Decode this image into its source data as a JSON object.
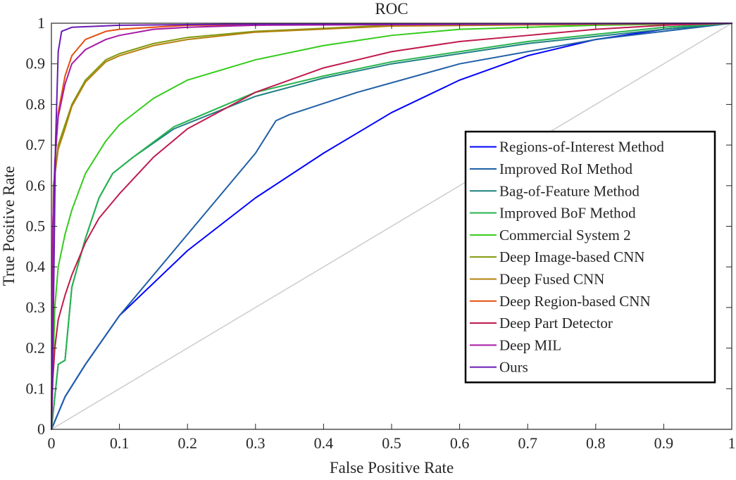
{
  "chart_data": {
    "type": "line",
    "title": "ROC",
    "xlabel": "False Positive Rate",
    "ylabel": "True Positive Rate",
    "xlim": [
      0,
      1
    ],
    "ylim": [
      0,
      1
    ],
    "xticks": [
      "0",
      "0.1",
      "0.2",
      "0.3",
      "0.4",
      "0.5",
      "0.6",
      "0.7",
      "0.8",
      "0.9",
      "1"
    ],
    "yticks": [
      "0",
      "0.1",
      "0.2",
      "0.3",
      "0.4",
      "0.5",
      "0.6",
      "0.7",
      "0.8",
      "0.9",
      "1"
    ],
    "grid": false,
    "legend_position": "right",
    "diagonal_color": "#cccccc",
    "series": [
      {
        "name": "Regions-of-Interest Method",
        "color": "#0000ff",
        "points": [
          [
            0,
            0
          ],
          [
            0.02,
            0.08
          ],
          [
            0.05,
            0.16
          ],
          [
            0.1,
            0.28
          ],
          [
            0.2,
            0.44
          ],
          [
            0.3,
            0.57
          ],
          [
            0.4,
            0.68
          ],
          [
            0.5,
            0.78
          ],
          [
            0.6,
            0.86
          ],
          [
            0.7,
            0.92
          ],
          [
            0.8,
            0.96
          ],
          [
            0.9,
            0.985
          ],
          [
            1,
            1
          ]
        ]
      },
      {
        "name": "Improved RoI Method",
        "color": "#1f5fa6",
        "points": [
          [
            0,
            0
          ],
          [
            0.02,
            0.08
          ],
          [
            0.05,
            0.16
          ],
          [
            0.1,
            0.28
          ],
          [
            0.2,
            0.48
          ],
          [
            0.3,
            0.68
          ],
          [
            0.33,
            0.76
          ],
          [
            0.35,
            0.775
          ],
          [
            0.45,
            0.83
          ],
          [
            0.6,
            0.9
          ],
          [
            0.8,
            0.96
          ],
          [
            1,
            1
          ]
        ]
      },
      {
        "name": "Bag-of-Feature Method",
        "color": "#1e8080",
        "points": [
          [
            0,
            0
          ],
          [
            0.01,
            0.16
          ],
          [
            0.02,
            0.17
          ],
          [
            0.03,
            0.35
          ],
          [
            0.05,
            0.47
          ],
          [
            0.07,
            0.57
          ],
          [
            0.09,
            0.63
          ],
          [
            0.12,
            0.67
          ],
          [
            0.18,
            0.74
          ],
          [
            0.3,
            0.82
          ],
          [
            0.4,
            0.865
          ],
          [
            0.5,
            0.9
          ],
          [
            0.7,
            0.95
          ],
          [
            0.9,
            0.985
          ],
          [
            1,
            1
          ]
        ]
      },
      {
        "name": "Improved BoF Method",
        "color": "#26b34d",
        "points": [
          [
            0,
            0
          ],
          [
            0.01,
            0.16
          ],
          [
            0.02,
            0.17
          ],
          [
            0.03,
            0.35
          ],
          [
            0.05,
            0.47
          ],
          [
            0.07,
            0.57
          ],
          [
            0.09,
            0.63
          ],
          [
            0.12,
            0.67
          ],
          [
            0.18,
            0.745
          ],
          [
            0.3,
            0.83
          ],
          [
            0.4,
            0.87
          ],
          [
            0.5,
            0.905
          ],
          [
            0.7,
            0.955
          ],
          [
            0.9,
            0.99
          ],
          [
            1,
            1
          ]
        ]
      },
      {
        "name": "Commercial System 2",
        "color": "#33cc1a",
        "points": [
          [
            0,
            0
          ],
          [
            0.005,
            0.3
          ],
          [
            0.01,
            0.4
          ],
          [
            0.02,
            0.48
          ],
          [
            0.03,
            0.54
          ],
          [
            0.05,
            0.63
          ],
          [
            0.08,
            0.71
          ],
          [
            0.1,
            0.75
          ],
          [
            0.15,
            0.815
          ],
          [
            0.2,
            0.86
          ],
          [
            0.3,
            0.91
          ],
          [
            0.4,
            0.945
          ],
          [
            0.5,
            0.97
          ],
          [
            0.6,
            0.985
          ],
          [
            0.8,
            0.995
          ],
          [
            1,
            1
          ]
        ]
      },
      {
        "name": "Deep Image-based CNN",
        "color": "#80990d",
        "points": [
          [
            0,
            0
          ],
          [
            0.003,
            0.6
          ],
          [
            0.01,
            0.7
          ],
          [
            0.02,
            0.75
          ],
          [
            0.03,
            0.8
          ],
          [
            0.05,
            0.86
          ],
          [
            0.08,
            0.91
          ],
          [
            0.1,
            0.925
          ],
          [
            0.15,
            0.95
          ],
          [
            0.2,
            0.965
          ],
          [
            0.3,
            0.98
          ],
          [
            0.5,
            0.995
          ],
          [
            1,
            1
          ]
        ]
      },
      {
        "name": "Deep Fused CNN",
        "color": "#b37f0d",
        "points": [
          [
            0,
            0
          ],
          [
            0.003,
            0.6
          ],
          [
            0.01,
            0.69
          ],
          [
            0.02,
            0.74
          ],
          [
            0.03,
            0.795
          ],
          [
            0.05,
            0.855
          ],
          [
            0.08,
            0.905
          ],
          [
            0.1,
            0.92
          ],
          [
            0.15,
            0.945
          ],
          [
            0.2,
            0.96
          ],
          [
            0.3,
            0.978
          ],
          [
            0.5,
            0.993
          ],
          [
            1,
            1
          ]
        ]
      },
      {
        "name": "Deep Region-based CNN",
        "color": "#e64d0d",
        "points": [
          [
            0,
            0
          ],
          [
            0.002,
            0.5
          ],
          [
            0.005,
            0.65
          ],
          [
            0.01,
            0.78
          ],
          [
            0.02,
            0.87
          ],
          [
            0.03,
            0.92
          ],
          [
            0.05,
            0.96
          ],
          [
            0.08,
            0.98
          ],
          [
            0.1,
            0.985
          ],
          [
            0.2,
            0.995
          ],
          [
            1,
            1
          ]
        ]
      },
      {
        "name": "Deep Part Detector",
        "color": "#c01a4d",
        "points": [
          [
            0,
            0
          ],
          [
            0.002,
            0.12
          ],
          [
            0.005,
            0.2
          ],
          [
            0.01,
            0.27
          ],
          [
            0.02,
            0.33
          ],
          [
            0.03,
            0.38
          ],
          [
            0.05,
            0.46
          ],
          [
            0.07,
            0.52
          ],
          [
            0.1,
            0.58
          ],
          [
            0.15,
            0.67
          ],
          [
            0.2,
            0.74
          ],
          [
            0.3,
            0.83
          ],
          [
            0.4,
            0.89
          ],
          [
            0.5,
            0.93
          ],
          [
            0.6,
            0.955
          ],
          [
            0.7,
            0.97
          ],
          [
            0.8,
            0.985
          ],
          [
            0.9,
            0.995
          ],
          [
            1,
            1
          ]
        ]
      },
      {
        "name": "Deep MIL",
        "color": "#a61aa6",
        "points": [
          [
            0,
            0
          ],
          [
            0.002,
            0.5
          ],
          [
            0.005,
            0.66
          ],
          [
            0.01,
            0.77
          ],
          [
            0.02,
            0.85
          ],
          [
            0.03,
            0.9
          ],
          [
            0.05,
            0.935
          ],
          [
            0.08,
            0.96
          ],
          [
            0.1,
            0.97
          ],
          [
            0.15,
            0.985
          ],
          [
            0.2,
            0.99
          ],
          [
            0.3,
            0.995
          ],
          [
            1,
            1
          ]
        ]
      },
      {
        "name": "Ours",
        "color": "#6a1ab3",
        "points": [
          [
            0,
            0
          ],
          [
            0.003,
            0.3
          ],
          [
            0.006,
            0.7
          ],
          [
            0.01,
            0.93
          ],
          [
            0.015,
            0.98
          ],
          [
            0.03,
            0.99
          ],
          [
            0.1,
            0.995
          ],
          [
            0.3,
            0.998
          ],
          [
            1,
            1
          ]
        ]
      }
    ]
  }
}
